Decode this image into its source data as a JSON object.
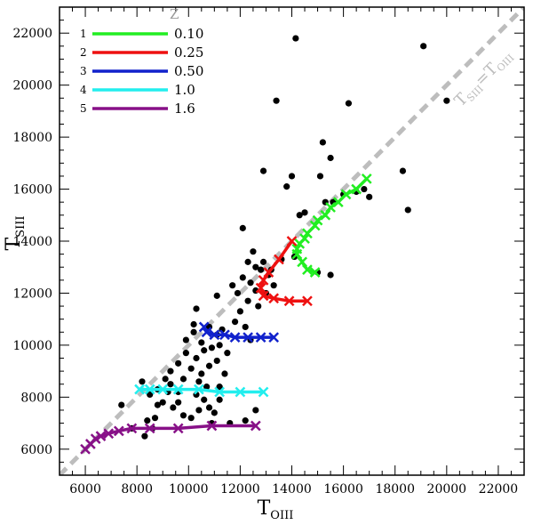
{
  "chart_data": {
    "type": "scatter",
    "xlabel": "T",
    "xlabel_sub": "OIII",
    "ylabel": "T",
    "ylabel_sub": "SIII",
    "xlim": [
      5000,
      23000
    ],
    "ylim": [
      5000,
      23000
    ],
    "xticks": [
      6000,
      8000,
      10000,
      12000,
      14000,
      16000,
      18000,
      20000,
      22000
    ],
    "yticks": [
      6000,
      8000,
      10000,
      12000,
      14000,
      16000,
      18000,
      20000,
      22000
    ],
    "grid": false,
    "legend_placement": "top-left",
    "legend_title": "Z",
    "diagonal": {
      "label_main": "T",
      "label_sub1": "SIII",
      "label_eq": "=T",
      "label_sub2": "OIII",
      "color": "#bdbdbd"
    },
    "observations": {
      "color": "#000000",
      "points": [
        [
          14150,
          21800
        ],
        [
          19100,
          21500
        ],
        [
          20000,
          19400
        ],
        [
          13400,
          19400
        ],
        [
          16200,
          19300
        ],
        [
          15200,
          17800
        ],
        [
          15500,
          17200
        ],
        [
          18300,
          16700
        ],
        [
          12900,
          16700
        ],
        [
          14000,
          16500
        ],
        [
          15100,
          16500
        ],
        [
          13800,
          16100
        ],
        [
          16500,
          15900
        ],
        [
          15300,
          15500
        ],
        [
          15600,
          15500
        ],
        [
          17000,
          15700
        ],
        [
          16800,
          16000
        ],
        [
          18500,
          15200
        ],
        [
          14300,
          15000
        ],
        [
          14500,
          15100
        ],
        [
          16000,
          15800
        ],
        [
          12100,
          14500
        ],
        [
          12500,
          13600
        ],
        [
          14100,
          13400
        ],
        [
          13600,
          13300
        ],
        [
          12300,
          13200
        ],
        [
          12600,
          13000
        ],
        [
          12900,
          13200
        ],
        [
          12800,
          12900
        ],
        [
          13200,
          12900
        ],
        [
          13100,
          12700
        ],
        [
          15000,
          12800
        ],
        [
          15500,
          12700
        ],
        [
          12100,
          12600
        ],
        [
          12400,
          12400
        ],
        [
          11700,
          12300
        ],
        [
          13300,
          12300
        ],
        [
          12600,
          12100
        ],
        [
          11900,
          12000
        ],
        [
          13000,
          12000
        ],
        [
          11100,
          11900
        ],
        [
          12300,
          11700
        ],
        [
          10300,
          11400
        ],
        [
          12700,
          11500
        ],
        [
          12000,
          11300
        ],
        [
          11800,
          10900
        ],
        [
          10200,
          10800
        ],
        [
          12200,
          10700
        ],
        [
          10800,
          10700
        ],
        [
          11300,
          10600
        ],
        [
          10200,
          10500
        ],
        [
          11100,
          10400
        ],
        [
          9900,
          10200
        ],
        [
          12400,
          10200
        ],
        [
          10500,
          10100
        ],
        [
          11200,
          10000
        ],
        [
          10900,
          9900
        ],
        [
          10600,
          9800
        ],
        [
          9900,
          9700
        ],
        [
          11500,
          9700
        ],
        [
          10300,
          9500
        ],
        [
          11100,
          9400
        ],
        [
          9600,
          9300
        ],
        [
          10800,
          9200
        ],
        [
          10100,
          9100
        ],
        [
          9300,
          9000
        ],
        [
          10500,
          8900
        ],
        [
          11400,
          8900
        ],
        [
          9100,
          8700
        ],
        [
          9800,
          8700
        ],
        [
          10400,
          8600
        ],
        [
          8200,
          8600
        ],
        [
          9300,
          8500
        ],
        [
          10700,
          8400
        ],
        [
          11200,
          8400
        ],
        [
          8800,
          8300
        ],
        [
          9600,
          8200
        ],
        [
          9200,
          8200
        ],
        [
          10300,
          8100
        ],
        [
          8500,
          8100
        ],
        [
          10600,
          7900
        ],
        [
          11200,
          7900
        ],
        [
          9000,
          7800
        ],
        [
          9600,
          7800
        ],
        [
          8800,
          7700
        ],
        [
          7400,
          7700
        ],
        [
          10800,
          7600
        ],
        [
          9400,
          7600
        ],
        [
          10400,
          7500
        ],
        [
          11000,
          7400
        ],
        [
          9800,
          7300
        ],
        [
          12600,
          7500
        ],
        [
          10100,
          7200
        ],
        [
          8700,
          7200
        ],
        [
          12200,
          7100
        ],
        [
          8400,
          7100
        ],
        [
          11600,
          7000
        ],
        [
          10900,
          7000
        ],
        [
          8600,
          6800
        ],
        [
          7800,
          6800
        ],
        [
          8300,
          6500
        ]
      ]
    },
    "series": [
      {
        "legend_index": "1",
        "name": "0.10",
        "color": "#22ee22",
        "points": [
          [
            16900,
            16400
          ],
          [
            16500,
            16000
          ],
          [
            16100,
            15800
          ],
          [
            15800,
            15500
          ],
          [
            15500,
            15300
          ],
          [
            15300,
            15000
          ],
          [
            15000,
            14800
          ],
          [
            14900,
            14600
          ],
          [
            14600,
            14300
          ],
          [
            14500,
            14100
          ],
          [
            14300,
            13900
          ],
          [
            14200,
            13700
          ],
          [
            14200,
            13500
          ],
          [
            14400,
            13200
          ],
          [
            14600,
            12900
          ],
          [
            14900,
            12800
          ]
        ]
      },
      {
        "legend_index": "2",
        "name": "0.25",
        "color": "#ee1111",
        "points": [
          [
            14000,
            14000
          ],
          [
            13500,
            13300
          ],
          [
            13100,
            12800
          ],
          [
            12900,
            12500
          ],
          [
            12800,
            12200
          ],
          [
            12900,
            11900
          ],
          [
            13300,
            11800
          ],
          [
            13900,
            11700
          ],
          [
            14600,
            11700
          ]
        ]
      },
      {
        "legend_index": "3",
        "name": "0.50",
        "color": "#1122cc",
        "points": [
          [
            10600,
            10700
          ],
          [
            10700,
            10500
          ],
          [
            11000,
            10400
          ],
          [
            11400,
            10400
          ],
          [
            11800,
            10300
          ],
          [
            12300,
            10300
          ],
          [
            12800,
            10300
          ],
          [
            13300,
            10300
          ]
        ]
      },
      {
        "legend_index": "4",
        "name": "1.0",
        "color": "#22eeee",
        "points": [
          [
            8100,
            8300
          ],
          [
            8500,
            8300
          ],
          [
            9000,
            8300
          ],
          [
            9600,
            8300
          ],
          [
            10400,
            8300
          ],
          [
            11200,
            8200
          ],
          [
            12000,
            8200
          ],
          [
            12900,
            8200
          ]
        ]
      },
      {
        "legend_index": "5",
        "name": "1.6",
        "color": "#881188",
        "points": [
          [
            6000,
            6000
          ],
          [
            6200,
            6200
          ],
          [
            6400,
            6400
          ],
          [
            6600,
            6500
          ],
          [
            6900,
            6600
          ],
          [
            7300,
            6700
          ],
          [
            7800,
            6800
          ],
          [
            8500,
            6800
          ],
          [
            9600,
            6800
          ],
          [
            10900,
            6900
          ],
          [
            12600,
            6900
          ]
        ]
      }
    ]
  }
}
